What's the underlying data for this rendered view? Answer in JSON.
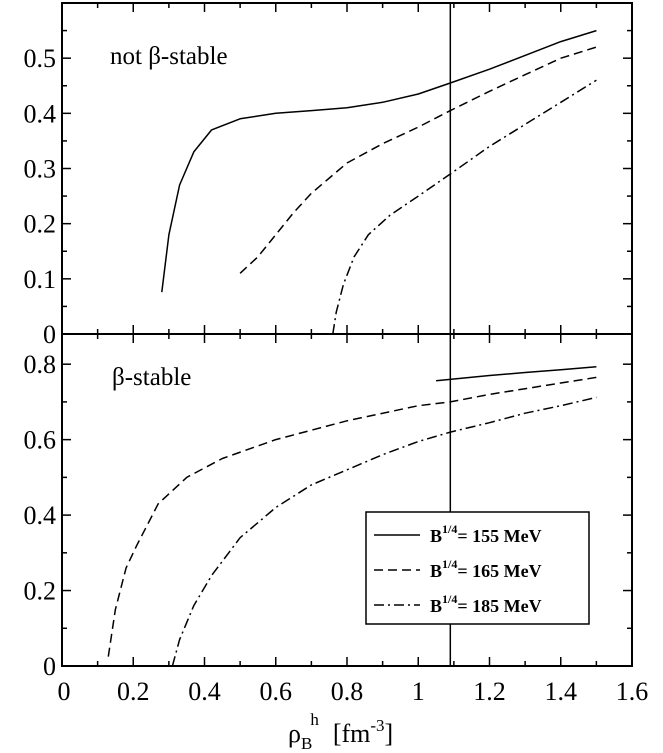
{
  "chart_data": [
    {
      "type": "line",
      "panel_label": "not β-stable",
      "xlim": [
        0,
        1.6
      ],
      "ylim": [
        0,
        0.6
      ],
      "x_ticks": [
        "0",
        "0.2",
        "0.4",
        "0.6",
        "0.8",
        "1",
        "1.2",
        "1.4",
        "1.6"
      ],
      "y_ticks": [
        "0",
        "0.1",
        "0.2",
        "0.3",
        "0.4",
        "0.5"
      ],
      "y_tick_values": [
        0,
        0.1,
        0.2,
        0.3,
        0.4,
        0.5
      ],
      "vertical_line_x": 1.09,
      "series": [
        {
          "name": "B1/4= 155 MeV",
          "style": "solid",
          "points": [
            [
              0.28,
              0.076
            ],
            [
              0.3,
              0.18
            ],
            [
              0.33,
              0.27
            ],
            [
              0.37,
              0.33
            ],
            [
              0.42,
              0.37
            ],
            [
              0.5,
              0.39
            ],
            [
              0.6,
              0.4
            ],
            [
              0.7,
              0.405
            ],
            [
              0.8,
              0.41
            ],
            [
              0.9,
              0.42
            ],
            [
              1.0,
              0.435
            ],
            [
              1.09,
              0.455
            ],
            [
              1.2,
              0.48
            ],
            [
              1.3,
              0.505
            ],
            [
              1.4,
              0.53
            ],
            [
              1.5,
              0.55
            ]
          ]
        },
        {
          "name": "B1/4= 165 MeV",
          "style": "dashed",
          "points": [
            [
              0.5,
              0.11
            ],
            [
              0.55,
              0.14
            ],
            [
              0.6,
              0.18
            ],
            [
              0.65,
              0.22
            ],
            [
              0.7,
              0.255
            ],
            [
              0.8,
              0.31
            ],
            [
              0.9,
              0.345
            ],
            [
              1.0,
              0.375
            ],
            [
              1.09,
              0.405
            ],
            [
              1.2,
              0.44
            ],
            [
              1.3,
              0.47
            ],
            [
              1.4,
              0.5
            ],
            [
              1.5,
              0.52
            ]
          ]
        },
        {
          "name": "B1/4= 185 MeV",
          "style": "dashdot",
          "points": [
            [
              0.76,
              0.0
            ],
            [
              0.77,
              0.04
            ],
            [
              0.79,
              0.09
            ],
            [
              0.82,
              0.14
            ],
            [
              0.86,
              0.18
            ],
            [
              0.92,
              0.215
            ],
            [
              1.0,
              0.25
            ],
            [
              1.09,
              0.29
            ],
            [
              1.2,
              0.34
            ],
            [
              1.3,
              0.38
            ],
            [
              1.4,
              0.42
            ],
            [
              1.5,
              0.46
            ]
          ]
        }
      ]
    },
    {
      "type": "line",
      "panel_label": "β-stable",
      "xlim": [
        0,
        1.6
      ],
      "ylim": [
        0,
        0.88
      ],
      "x_ticks": [
        "0",
        "0.2",
        "0.4",
        "0.6",
        "0.8",
        "1",
        "1.2",
        "1.4",
        "1.6"
      ],
      "y_ticks": [
        "0",
        "0.2",
        "0.4",
        "0.6",
        "0.8"
      ],
      "y_tick_values": [
        0,
        0.2,
        0.4,
        0.6,
        0.8
      ],
      "vertical_line_x": 1.09,
      "series": [
        {
          "name": "B1/4= 155 MeV",
          "style": "solid",
          "points": [
            [
              1.05,
              0.756
            ],
            [
              1.2,
              0.77
            ],
            [
              1.3,
              0.778
            ],
            [
              1.4,
              0.785
            ],
            [
              1.5,
              0.793
            ]
          ]
        },
        {
          "name": "B1/4= 165 MeV",
          "style": "dashed",
          "points": [
            [
              0.13,
              0.025
            ],
            [
              0.15,
              0.15
            ],
            [
              0.18,
              0.26
            ],
            [
              0.21,
              0.32
            ],
            [
              0.27,
              0.43
            ],
            [
              0.35,
              0.5
            ],
            [
              0.45,
              0.55
            ],
            [
              0.6,
              0.6
            ],
            [
              0.8,
              0.65
            ],
            [
              1.0,
              0.69
            ],
            [
              1.09,
              0.7
            ],
            [
              1.2,
              0.72
            ],
            [
              1.3,
              0.735
            ],
            [
              1.4,
              0.75
            ],
            [
              1.5,
              0.765
            ]
          ]
        },
        {
          "name": "B1/4= 185 MeV",
          "style": "dashdot",
          "points": [
            [
              0.31,
              0.0
            ],
            [
              0.33,
              0.07
            ],
            [
              0.37,
              0.16
            ],
            [
              0.42,
              0.24
            ],
            [
              0.5,
              0.34
            ],
            [
              0.6,
              0.42
            ],
            [
              0.7,
              0.48
            ],
            [
              0.8,
              0.52
            ],
            [
              0.9,
              0.56
            ],
            [
              1.0,
              0.595
            ],
            [
              1.09,
              0.62
            ],
            [
              1.2,
              0.645
            ],
            [
              1.3,
              0.67
            ],
            [
              1.4,
              0.69
            ],
            [
              1.5,
              0.712
            ]
          ]
        }
      ]
    }
  ],
  "legend": {
    "entries": [
      {
        "prefix": "B",
        "sup": "1/4",
        "rest": "= 155 MeV",
        "style": "solid"
      },
      {
        "prefix": "B",
        "sup": "1/4",
        "rest": "= 165 MeV",
        "style": "dashed"
      },
      {
        "prefix": "B",
        "sup": "1/4",
        "rest": "= 185 MeV",
        "style": "dashdot"
      }
    ]
  },
  "x_axis_label": {
    "main": "ρ",
    "sub": "B",
    "sup": "h",
    "unit": "[fm",
    "unit_sup": "-3",
    "unit_end": "]"
  }
}
